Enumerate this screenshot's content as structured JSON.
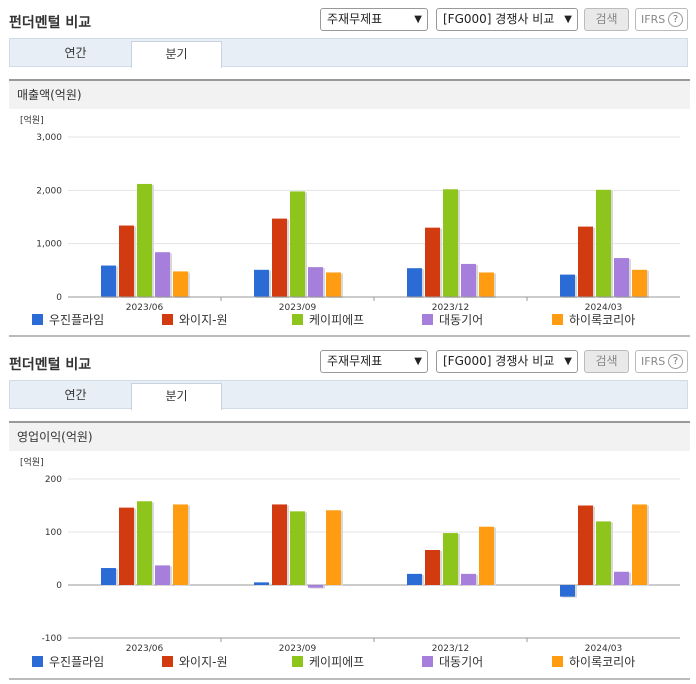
{
  "header": {
    "title": "펀더멘털 비교",
    "select_statement": "주재무제표",
    "select_compare": "[FG000] 경쟁사 비교",
    "search_label": "검색",
    "ifrs_label": "IFRS",
    "help_label": "?"
  },
  "tabs": {
    "annual": "연간",
    "quarterly": "분기"
  },
  "colors": {
    "우진플라임": "#2b6bd6",
    "와이지-원": "#d23a10",
    "케이피에프": "#8dc51c",
    "대동기어": "#a67fdd",
    "하이록코리아": "#ff9c12"
  },
  "chart_data": [
    {
      "type": "bar",
      "title": "매출액(억원)",
      "unit_label": "[억원]",
      "categories": [
        "2023/06",
        "2023/09",
        "2023/12",
        "2024/03"
      ],
      "ylim": [
        0,
        3000
      ],
      "yticks": [
        "3,000",
        "2,000",
        "1,000",
        "0"
      ],
      "ytick_values": [
        3000,
        2000,
        1000,
        0
      ],
      "series": [
        {
          "name": "우진플라임",
          "values": [
            590,
            510,
            540,
            420
          ]
        },
        {
          "name": "와이지-원",
          "values": [
            1340,
            1470,
            1300,
            1320
          ]
        },
        {
          "name": "케이피에프",
          "values": [
            2120,
            1980,
            2020,
            2010
          ]
        },
        {
          "name": "대동기어",
          "values": [
            840,
            560,
            620,
            730
          ]
        },
        {
          "name": "하이록코리아",
          "values": [
            480,
            460,
            460,
            510
          ]
        }
      ]
    },
    {
      "type": "bar",
      "title": "영업이익(억원)",
      "unit_label": "[억원]",
      "categories": [
        "2023/06",
        "2023/09",
        "2023/12",
        "2024/03"
      ],
      "ylim": [
        -100,
        200
      ],
      "yticks": [
        "200",
        "100",
        "0",
        "-100"
      ],
      "ytick_values": [
        200,
        100,
        0,
        -100
      ],
      "series": [
        {
          "name": "우진플라임",
          "values": [
            32,
            5,
            21,
            -22
          ]
        },
        {
          "name": "와이지-원",
          "values": [
            146,
            152,
            66,
            150
          ]
        },
        {
          "name": "케이피에프",
          "values": [
            158,
            139,
            98,
            120
          ]
        },
        {
          "name": "대동기어",
          "values": [
            37,
            -5,
            21,
            25
          ]
        },
        {
          "name": "하이록코리아",
          "values": [
            152,
            141,
            110,
            152
          ]
        }
      ]
    }
  ]
}
